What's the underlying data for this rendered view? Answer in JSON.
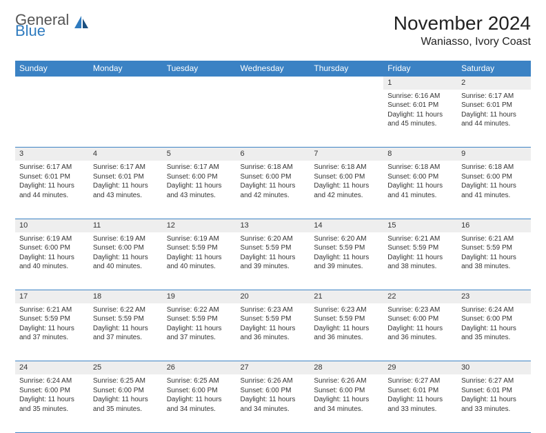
{
  "brand": {
    "top": "General",
    "bottom": "Blue"
  },
  "title": "November 2024",
  "location": "Waniasso, Ivory Coast",
  "colors": {
    "header_bg": "#3b82c4",
    "header_text": "#ffffff",
    "border": "#3b82c4",
    "daynum_bg": "#eeeeee",
    "body_text": "#333333",
    "brand_accent": "#2f7bbf"
  },
  "day_labels": [
    "Sunday",
    "Monday",
    "Tuesday",
    "Wednesday",
    "Thursday",
    "Friday",
    "Saturday"
  ],
  "weeks": [
    [
      {
        "n": "",
        "sr": "",
        "ss": "",
        "dl": ""
      },
      {
        "n": "",
        "sr": "",
        "ss": "",
        "dl": ""
      },
      {
        "n": "",
        "sr": "",
        "ss": "",
        "dl": ""
      },
      {
        "n": "",
        "sr": "",
        "ss": "",
        "dl": ""
      },
      {
        "n": "",
        "sr": "",
        "ss": "",
        "dl": ""
      },
      {
        "n": "1",
        "sr": "Sunrise: 6:16 AM",
        "ss": "Sunset: 6:01 PM",
        "dl": "Daylight: 11 hours and 45 minutes."
      },
      {
        "n": "2",
        "sr": "Sunrise: 6:17 AM",
        "ss": "Sunset: 6:01 PM",
        "dl": "Daylight: 11 hours and 44 minutes."
      }
    ],
    [
      {
        "n": "3",
        "sr": "Sunrise: 6:17 AM",
        "ss": "Sunset: 6:01 PM",
        "dl": "Daylight: 11 hours and 44 minutes."
      },
      {
        "n": "4",
        "sr": "Sunrise: 6:17 AM",
        "ss": "Sunset: 6:01 PM",
        "dl": "Daylight: 11 hours and 43 minutes."
      },
      {
        "n": "5",
        "sr": "Sunrise: 6:17 AM",
        "ss": "Sunset: 6:00 PM",
        "dl": "Daylight: 11 hours and 43 minutes."
      },
      {
        "n": "6",
        "sr": "Sunrise: 6:18 AM",
        "ss": "Sunset: 6:00 PM",
        "dl": "Daylight: 11 hours and 42 minutes."
      },
      {
        "n": "7",
        "sr": "Sunrise: 6:18 AM",
        "ss": "Sunset: 6:00 PM",
        "dl": "Daylight: 11 hours and 42 minutes."
      },
      {
        "n": "8",
        "sr": "Sunrise: 6:18 AM",
        "ss": "Sunset: 6:00 PM",
        "dl": "Daylight: 11 hours and 41 minutes."
      },
      {
        "n": "9",
        "sr": "Sunrise: 6:18 AM",
        "ss": "Sunset: 6:00 PM",
        "dl": "Daylight: 11 hours and 41 minutes."
      }
    ],
    [
      {
        "n": "10",
        "sr": "Sunrise: 6:19 AM",
        "ss": "Sunset: 6:00 PM",
        "dl": "Daylight: 11 hours and 40 minutes."
      },
      {
        "n": "11",
        "sr": "Sunrise: 6:19 AM",
        "ss": "Sunset: 6:00 PM",
        "dl": "Daylight: 11 hours and 40 minutes."
      },
      {
        "n": "12",
        "sr": "Sunrise: 6:19 AM",
        "ss": "Sunset: 5:59 PM",
        "dl": "Daylight: 11 hours and 40 minutes."
      },
      {
        "n": "13",
        "sr": "Sunrise: 6:20 AM",
        "ss": "Sunset: 5:59 PM",
        "dl": "Daylight: 11 hours and 39 minutes."
      },
      {
        "n": "14",
        "sr": "Sunrise: 6:20 AM",
        "ss": "Sunset: 5:59 PM",
        "dl": "Daylight: 11 hours and 39 minutes."
      },
      {
        "n": "15",
        "sr": "Sunrise: 6:21 AM",
        "ss": "Sunset: 5:59 PM",
        "dl": "Daylight: 11 hours and 38 minutes."
      },
      {
        "n": "16",
        "sr": "Sunrise: 6:21 AM",
        "ss": "Sunset: 5:59 PM",
        "dl": "Daylight: 11 hours and 38 minutes."
      }
    ],
    [
      {
        "n": "17",
        "sr": "Sunrise: 6:21 AM",
        "ss": "Sunset: 5:59 PM",
        "dl": "Daylight: 11 hours and 37 minutes."
      },
      {
        "n": "18",
        "sr": "Sunrise: 6:22 AM",
        "ss": "Sunset: 5:59 PM",
        "dl": "Daylight: 11 hours and 37 minutes."
      },
      {
        "n": "19",
        "sr": "Sunrise: 6:22 AM",
        "ss": "Sunset: 5:59 PM",
        "dl": "Daylight: 11 hours and 37 minutes."
      },
      {
        "n": "20",
        "sr": "Sunrise: 6:23 AM",
        "ss": "Sunset: 5:59 PM",
        "dl": "Daylight: 11 hours and 36 minutes."
      },
      {
        "n": "21",
        "sr": "Sunrise: 6:23 AM",
        "ss": "Sunset: 5:59 PM",
        "dl": "Daylight: 11 hours and 36 minutes."
      },
      {
        "n": "22",
        "sr": "Sunrise: 6:23 AM",
        "ss": "Sunset: 6:00 PM",
        "dl": "Daylight: 11 hours and 36 minutes."
      },
      {
        "n": "23",
        "sr": "Sunrise: 6:24 AM",
        "ss": "Sunset: 6:00 PM",
        "dl": "Daylight: 11 hours and 35 minutes."
      }
    ],
    [
      {
        "n": "24",
        "sr": "Sunrise: 6:24 AM",
        "ss": "Sunset: 6:00 PM",
        "dl": "Daylight: 11 hours and 35 minutes."
      },
      {
        "n": "25",
        "sr": "Sunrise: 6:25 AM",
        "ss": "Sunset: 6:00 PM",
        "dl": "Daylight: 11 hours and 35 minutes."
      },
      {
        "n": "26",
        "sr": "Sunrise: 6:25 AM",
        "ss": "Sunset: 6:00 PM",
        "dl": "Daylight: 11 hours and 34 minutes."
      },
      {
        "n": "27",
        "sr": "Sunrise: 6:26 AM",
        "ss": "Sunset: 6:00 PM",
        "dl": "Daylight: 11 hours and 34 minutes."
      },
      {
        "n": "28",
        "sr": "Sunrise: 6:26 AM",
        "ss": "Sunset: 6:00 PM",
        "dl": "Daylight: 11 hours and 34 minutes."
      },
      {
        "n": "29",
        "sr": "Sunrise: 6:27 AM",
        "ss": "Sunset: 6:01 PM",
        "dl": "Daylight: 11 hours and 33 minutes."
      },
      {
        "n": "30",
        "sr": "Sunrise: 6:27 AM",
        "ss": "Sunset: 6:01 PM",
        "dl": "Daylight: 11 hours and 33 minutes."
      }
    ]
  ]
}
